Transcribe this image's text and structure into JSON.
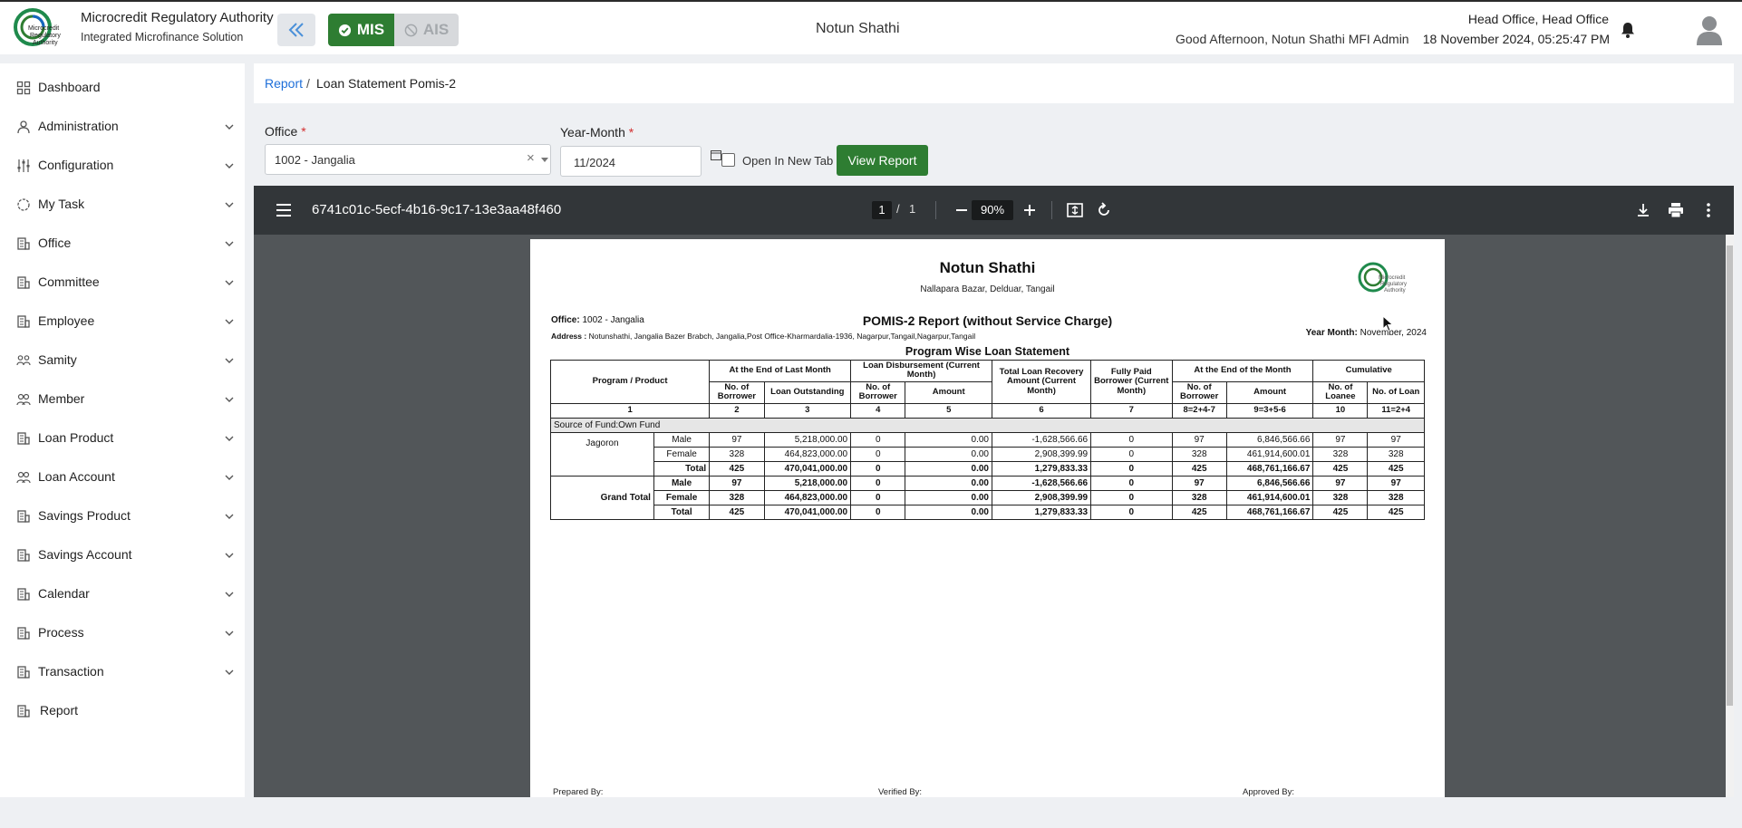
{
  "header": {
    "org_name": "Microcredit Regulatory Authority",
    "org_subtitle": "Integrated Microfinance Solution",
    "mis_label": "MIS",
    "ais_label": "AIS",
    "center_title": "Notun Shathi",
    "greeting": "Good Afternoon, Notun Shathi MFI Admin",
    "office": "Head Office, Head Office",
    "datetime": "18 November 2024, 05:25:47 PM",
    "logo_text": [
      "Microcredit",
      "Regulatory",
      "Authority"
    ]
  },
  "sidebar": {
    "items": [
      {
        "label": "Dashboard",
        "icon": "dashboard-icon"
      },
      {
        "label": "Administration",
        "icon": "admin-icon"
      },
      {
        "label": "Configuration",
        "icon": "sliders-icon"
      },
      {
        "label": "My Task",
        "icon": "task-icon"
      },
      {
        "label": "Office",
        "icon": "office-icon"
      },
      {
        "label": "Committee",
        "icon": "committee-icon"
      },
      {
        "label": "Employee",
        "icon": "employee-icon"
      },
      {
        "label": "Samity",
        "icon": "samity-icon"
      },
      {
        "label": "Member",
        "icon": "member-icon"
      },
      {
        "label": "Loan Product",
        "icon": "loan-product-icon"
      },
      {
        "label": "Loan Account",
        "icon": "loan-account-icon"
      },
      {
        "label": "Savings Product",
        "icon": "savings-product-icon"
      },
      {
        "label": "Savings Account",
        "icon": "savings-account-icon"
      },
      {
        "label": "Calendar",
        "icon": "calendar-icon"
      },
      {
        "label": "Process",
        "icon": "process-icon"
      },
      {
        "label": "Transaction",
        "icon": "transaction-icon"
      },
      {
        "label": "Report",
        "icon": "report-icon"
      }
    ]
  },
  "breadcrumb": {
    "parent": "Report",
    "separator": "/",
    "current": "Loan Statement Pomis-2"
  },
  "filters": {
    "office_label": "Office",
    "office_value": "1002 - Jangalia",
    "clear_symbol": "×",
    "year_month_label": "Year-Month",
    "year_month_value": "11/2024",
    "required_mark": "*",
    "open_new_tab_label": "Open In New Tab",
    "view_report_label": "View Report"
  },
  "viewer": {
    "file_name": "6741c01c-5ecf-4b16-9c17-13e3aa48f460",
    "current_page": "1",
    "page_sep": "/",
    "total_pages": "1",
    "zoom": "90%"
  },
  "report": {
    "org_title": "Notun Shathi",
    "org_address": "Nallapara Bazar, Delduar, Tangail",
    "office_label": "Office:",
    "office_value": "1002 - Jangalia",
    "address_label": "Address :",
    "address_value": "Notunshathi, Jangalia Bazer Brabch, Jangalia,Post Office-Kharmardalia-1936, Nagarpur,Tangail,Nagarpur,Tangail",
    "report_title": "POMIS-2 Report (without Service Charge)",
    "year_month_label": "Year Month:",
    "year_month_value": "November, 2024",
    "section_title": "Program Wise Loan Statement",
    "headers": {
      "program": "Program / Product",
      "end_last_month": "At the End of Last Month",
      "disbursement": "Loan Disbursement (Current Month)",
      "recovery": "Total Loan Recovery Amount (Current Month)",
      "fully_paid": "Fully Paid Borrower (Current Month)",
      "end_month": "At the End of the Month",
      "cumulative": "Cumulative",
      "no_borrower": "No. of Borrower",
      "loan_outstanding": "Loan Outstanding",
      "amount": "Amount",
      "no_loanee": "No. of Loanee",
      "no_loan": "No. of Loan"
    },
    "col_numbers": [
      "1",
      "2",
      "3",
      "4",
      "5",
      "6",
      "7",
      "8=2+4-7",
      "9=3+5-6",
      "10",
      "11=2+4"
    ],
    "fund_row": "Source of Fund:Own Fund",
    "product": "Jagoron",
    "rows": [
      {
        "label": "Male",
        "v": [
          "97",
          "5,218,000.00",
          "0",
          "0.00",
          "-1,628,566.66",
          "0",
          "97",
          "6,846,566.66",
          "97",
          "97"
        ]
      },
      {
        "label": "Female",
        "v": [
          "328",
          "464,823,000.00",
          "0",
          "0.00",
          "2,908,399.99",
          "0",
          "328",
          "461,914,600.01",
          "328",
          "328"
        ]
      },
      {
        "label": "Total",
        "v": [
          "425",
          "470,041,000.00",
          "0",
          "0.00",
          "1,279,833.33",
          "0",
          "425",
          "468,761,166.67",
          "425",
          "425"
        ]
      }
    ],
    "grand_total_label": "Grand Total",
    "grand_rows": [
      {
        "label": "Male",
        "v": [
          "97",
          "5,218,000.00",
          "0",
          "0.00",
          "-1,628,566.66",
          "0",
          "97",
          "6,846,566.66",
          "97",
          "97"
        ]
      },
      {
        "label": "Female",
        "v": [
          "328",
          "464,823,000.00",
          "0",
          "0.00",
          "2,908,399.99",
          "0",
          "328",
          "461,914,600.01",
          "328",
          "328"
        ]
      },
      {
        "label": "Total",
        "v": [
          "425",
          "470,041,000.00",
          "0",
          "0.00",
          "1,279,833.33",
          "0",
          "425",
          "468,761,166.67",
          "425",
          "425"
        ]
      }
    ],
    "prepared_by": "Prepared By:",
    "verified_by": "Verified By:",
    "approved_by": "Approved By:"
  }
}
